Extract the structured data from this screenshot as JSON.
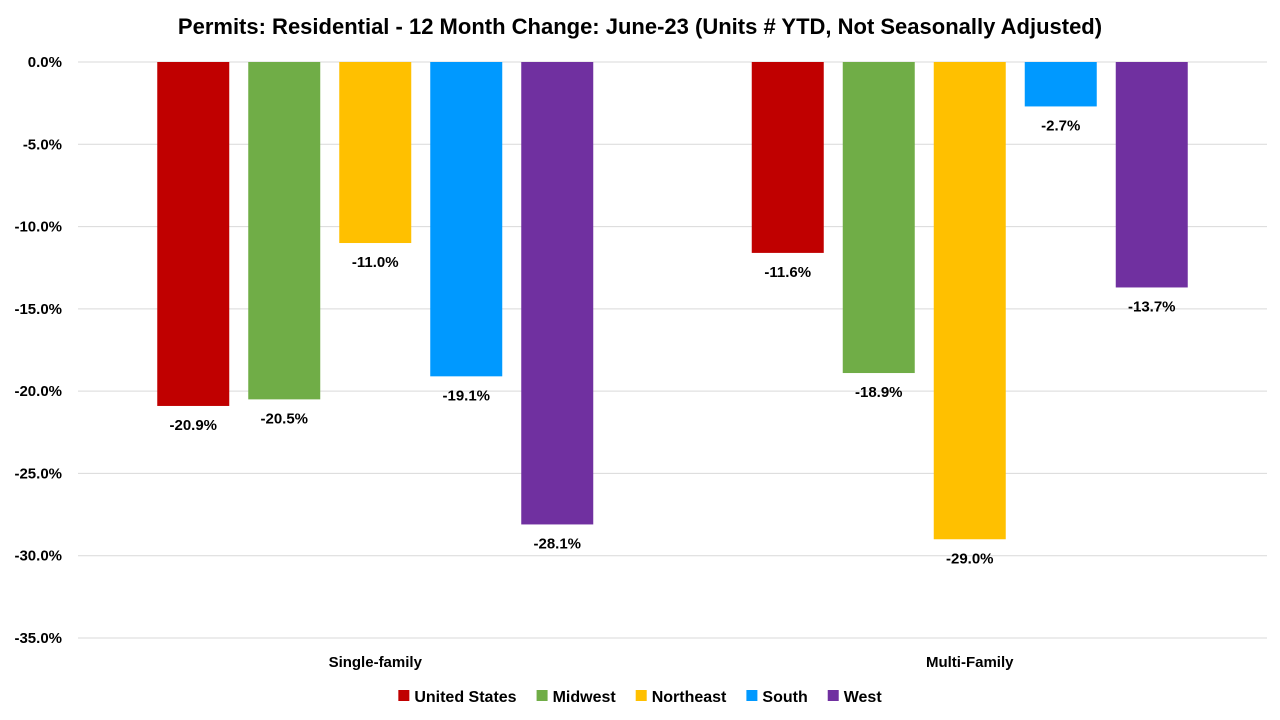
{
  "chart_data": {
    "type": "bar",
    "title": "Permits: Residential - 12 Month Change:  June-23 (Units # YTD, Not Seasonally Adjusted)",
    "xlabel": "",
    "ylabel": "",
    "categories": [
      "Single-family",
      "Multi-Family"
    ],
    "series": [
      {
        "name": "United States",
        "color": "#C00000",
        "values": [
          -20.9,
          -11.6
        ],
        "labels": [
          "-20.9%",
          "-11.6%"
        ]
      },
      {
        "name": "Midwest",
        "color": "#70AD47",
        "values": [
          -20.5,
          -18.9
        ],
        "labels": [
          "-20.5%",
          "-18.9%"
        ]
      },
      {
        "name": "Northeast",
        "color": "#FFC000",
        "values": [
          -11.0,
          -29.0
        ],
        "labels": [
          "-11.0%",
          "-29.0%"
        ]
      },
      {
        "name": "South",
        "color": "#0099FF",
        "values": [
          -19.1,
          -2.7
        ],
        "labels": [
          "-19.1%",
          "-2.7%"
        ]
      },
      {
        "name": "West",
        "color": "#7030A0",
        "values": [
          -28.1,
          -13.7
        ],
        "labels": [
          "-28.1%",
          "-13.7%"
        ]
      }
    ],
    "ylim": [
      -35,
      0
    ],
    "yticks": [
      0,
      -5,
      -10,
      -15,
      -20,
      -25,
      -30,
      -35
    ],
    "ytick_labels": [
      "0.0%",
      "-5.0%",
      "-10.0%",
      "-15.0%",
      "-20.0%",
      "-25.0%",
      "-30.0%",
      "-35.0%"
    ],
    "grid": true,
    "legend_position": "bottom"
  }
}
